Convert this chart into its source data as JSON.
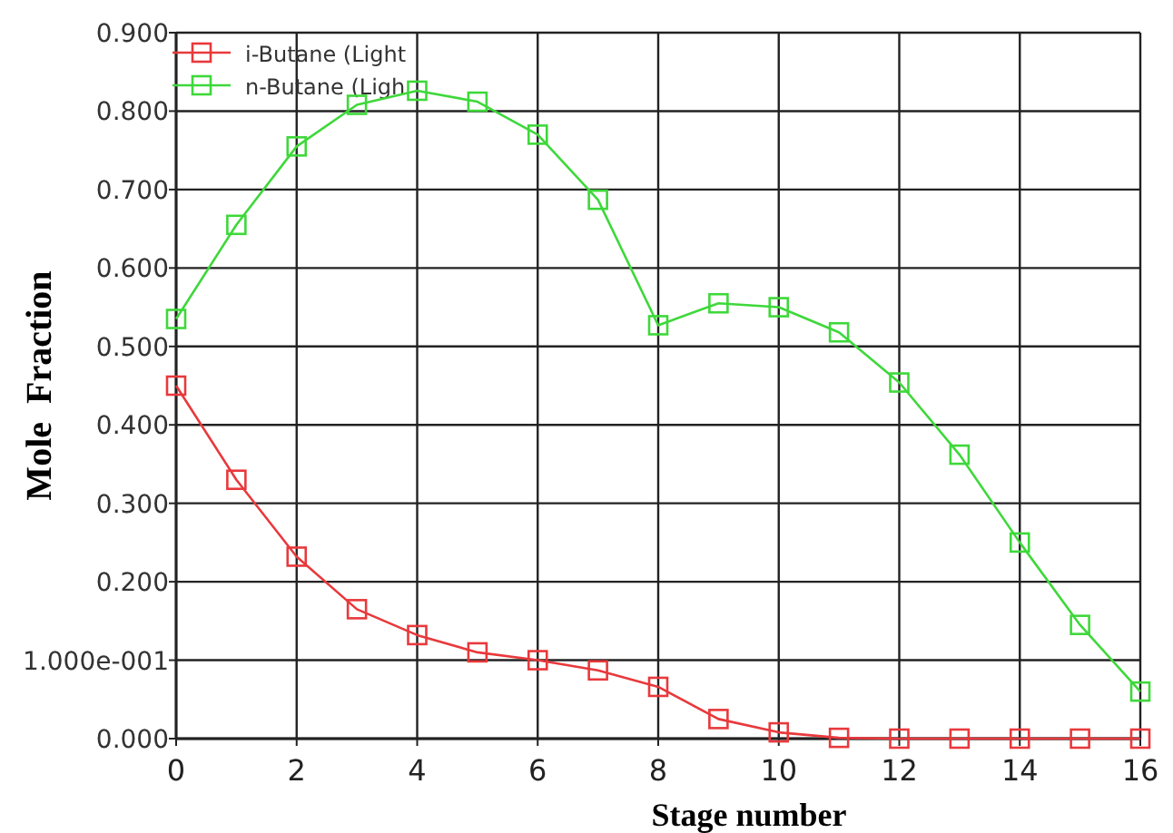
{
  "chart_data": {
    "type": "line",
    "xlabel": "Stage number",
    "ylabel": "Mole  Fraction",
    "x": [
      0,
      1,
      2,
      3,
      4,
      5,
      6,
      7,
      8,
      9,
      10,
      11,
      12,
      13,
      14,
      15,
      16
    ],
    "series": [
      {
        "name": "i-Butane (Light",
        "color": "#e8393c",
        "values": [
          0.45,
          0.33,
          0.232,
          0.165,
          0.132,
          0.11,
          0.1,
          0.087,
          0.066,
          0.025,
          0.008,
          0.001,
          0,
          0,
          0,
          0,
          0
        ]
      },
      {
        "name": "n-Butane (Ligh",
        "color": "#3ed83a",
        "values": [
          0.535,
          0.655,
          0.755,
          0.808,
          0.826,
          0.812,
          0.77,
          0.687,
          0.527,
          0.555,
          0.55,
          0.518,
          0.454,
          0.362,
          0.25,
          0.145,
          0.06
        ]
      }
    ],
    "xlim": [
      0,
      16
    ],
    "xticks": [
      0,
      2,
      4,
      6,
      8,
      10,
      12,
      14,
      16
    ],
    "ylim": [
      0,
      0.9
    ],
    "yticks": [
      {
        "value": 0,
        "label": "0.000"
      },
      {
        "value": 0.1,
        "label": "1.000e-001"
      },
      {
        "value": 0.2,
        "label": "0.200"
      },
      {
        "value": 0.3,
        "label": "0.300"
      },
      {
        "value": 0.4,
        "label": "0.400"
      },
      {
        "value": 0.5,
        "label": "0.500"
      },
      {
        "value": 0.6,
        "label": "0.600"
      },
      {
        "value": 0.7,
        "label": "0.700"
      },
      {
        "value": 0.8,
        "label": "0.800"
      },
      {
        "value": 0.9,
        "label": "0.900"
      }
    ],
    "grid": true,
    "legend": "top left",
    "marker": "square",
    "line_style": "solid"
  }
}
